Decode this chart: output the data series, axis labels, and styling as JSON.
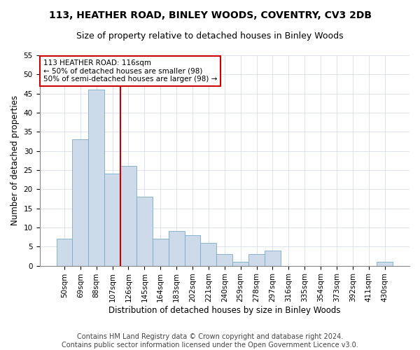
{
  "title1": "113, HEATHER ROAD, BINLEY WOODS, COVENTRY, CV3 2DB",
  "title2": "Size of property relative to detached houses in Binley Woods",
  "xlabel": "Distribution of detached houses by size in Binley Woods",
  "ylabel": "Number of detached properties",
  "footnote1": "Contains HM Land Registry data © Crown copyright and database right 2024.",
  "footnote2": "Contains public sector information licensed under the Open Government Licence v3.0.",
  "bin_labels": [
    "50sqm",
    "69sqm",
    "88sqm",
    "107sqm",
    "126sqm",
    "145sqm",
    "164sqm",
    "183sqm",
    "202sqm",
    "221sqm",
    "240sqm",
    "259sqm",
    "278sqm",
    "297sqm",
    "316sqm",
    "335sqm",
    "354sqm",
    "373sqm",
    "392sqm",
    "411sqm",
    "430sqm"
  ],
  "bar_values": [
    7,
    33,
    46,
    24,
    26,
    18,
    7,
    9,
    8,
    6,
    3,
    1,
    3,
    4,
    0,
    0,
    0,
    0,
    0,
    0,
    1
  ],
  "bar_color": "#ccdaea",
  "bar_edge_color": "#7aaac8",
  "vline_x": 3.5,
  "vline_color": "#cc0000",
  "annotation_text": "113 HEATHER ROAD: 116sqm\n← 50% of detached houses are smaller (98)\n50% of semi-detached houses are larger (98) →",
  "annotation_box_color": "#ffffff",
  "annotation_box_edge_color": "#cc0000",
  "ylim": [
    0,
    55
  ],
  "yticks": [
    0,
    5,
    10,
    15,
    20,
    25,
    30,
    35,
    40,
    45,
    50,
    55
  ],
  "background_color": "#ffffff",
  "grid_color": "#d0d8e8",
  "title_fontsize": 10,
  "subtitle_fontsize": 9,
  "axis_label_fontsize": 8.5,
  "tick_fontsize": 7.5,
  "annotation_fontsize": 7.5,
  "footnote_fontsize": 7
}
